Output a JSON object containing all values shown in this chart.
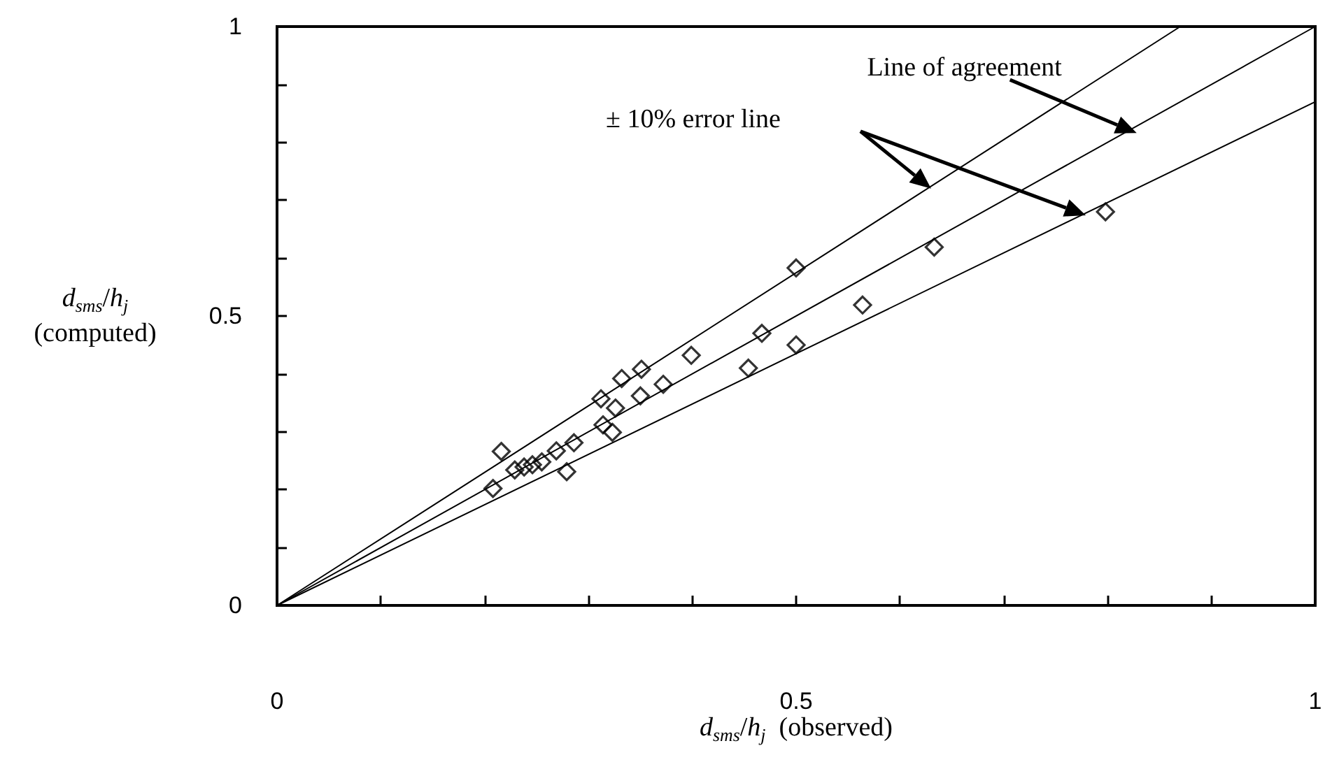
{
  "chart_data": {
    "type": "scatter",
    "xlabel": "d$_{sms}$/h$_{j}$  (observed)",
    "ylabel": "d$_{sms}$/h$_{j}$ (computed)",
    "annotations": [
      "Line of agreement",
      "± 10% error line"
    ],
    "xlim": [
      0,
      1
    ],
    "ylim": [
      0,
      1
    ],
    "xticks": [
      0,
      {
        "value": 0.1,
        "label": null
      },
      {
        "value": 0.2,
        "label": null
      },
      {
        "value": 0.3,
        "label": null
      },
      {
        "value": 0.4,
        "label": null
      },
      0.5,
      {
        "value": 0.6,
        "label": null
      },
      {
        "value": 0.7,
        "label": null
      },
      {
        "value": 0.8,
        "label": null
      },
      {
        "value": 0.9,
        "label": null
      },
      1
    ],
    "yticks": [
      0,
      {
        "value": 0.1,
        "label": null
      },
      {
        "value": 0.2,
        "label": null
      },
      {
        "value": 0.3,
        "label": null
      },
      {
        "value": 0.4,
        "label": null
      },
      0.5,
      {
        "value": 0.6,
        "label": null
      },
      {
        "value": 0.7,
        "label": null
      },
      {
        "value": 0.8,
        "label": null
      },
      {
        "value": 0.9,
        "label": null
      },
      1
    ],
    "series": [
      {
        "type": "line",
        "color": "#000000",
        "marker": "none",
        "x": [
          0,
          0.87
        ],
        "values": [
          0,
          1
        ]
      },
      {
        "type": "line",
        "color": "#000000",
        "marker": "none",
        "x": [
          0,
          1
        ],
        "values": [
          0,
          1
        ]
      },
      {
        "type": "line",
        "color": "#000000",
        "marker": "none",
        "x": [
          0,
          1
        ],
        "values": [
          0,
          0.87
        ]
      },
      {
        "color": "#000000",
        "marker": "diamond",
        "x": [
          0.208,
          0.216,
          0.229,
          0.238,
          0.246,
          0.255,
          0.269,
          0.279,
          0.286,
          0.314,
          0.323,
          0.312,
          0.326,
          0.332,
          0.351,
          0.35,
          0.372,
          0.399,
          0.454,
          0.467,
          0.5,
          0.5,
          0.564,
          0.633,
          0.798
        ],
        "values": [
          0.202,
          0.266,
          0.234,
          0.239,
          0.243,
          0.248,
          0.267,
          0.231,
          0.281,
          0.312,
          0.299,
          0.357,
          0.341,
          0.392,
          0.408,
          0.362,
          0.382,
          0.432,
          0.41,
          0.47,
          0.45,
          0.583,
          0.519,
          0.619,
          0.68
        ]
      }
    ]
  }
}
